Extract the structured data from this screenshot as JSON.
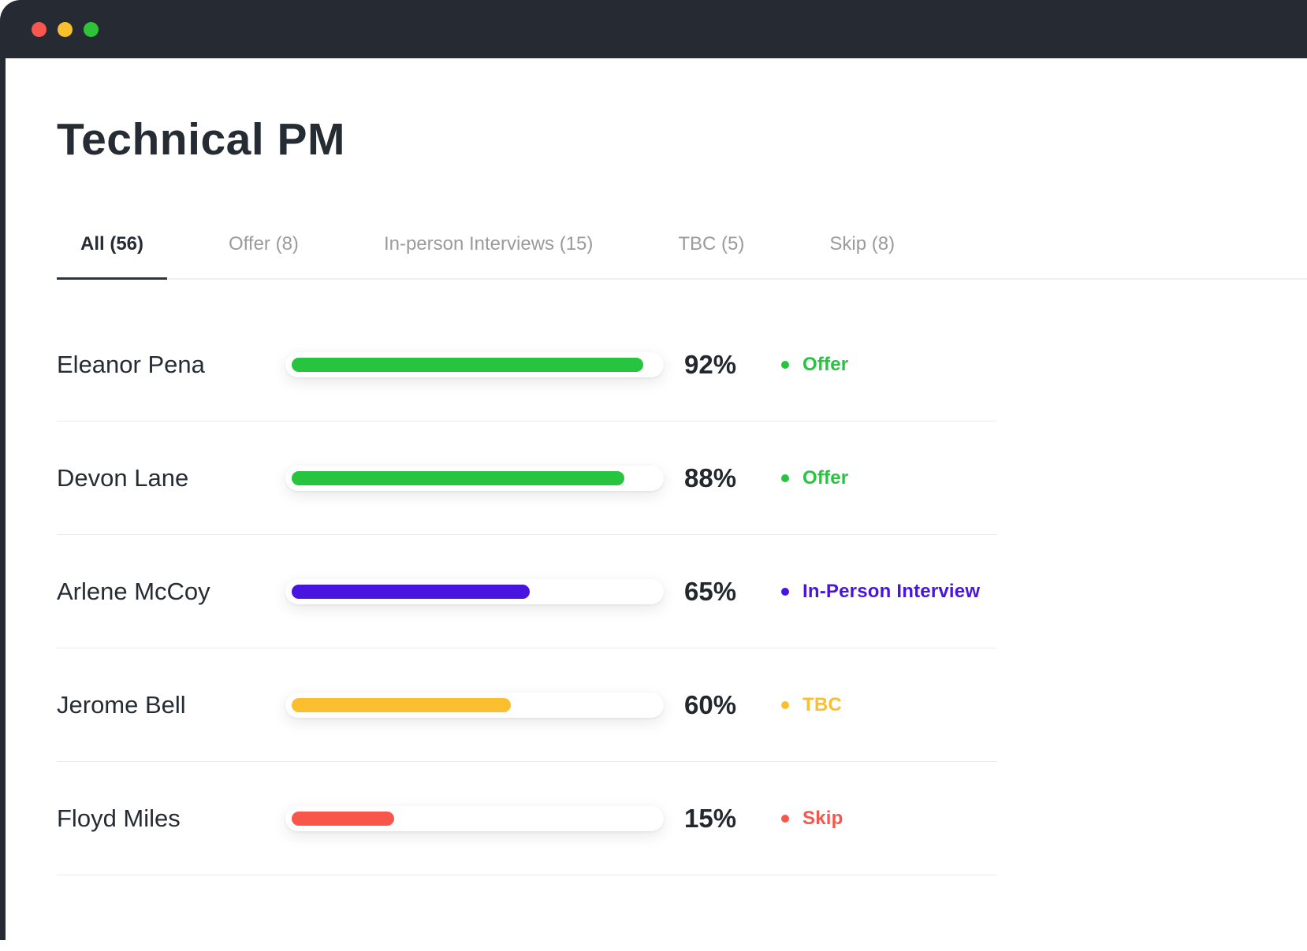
{
  "window": {
    "titlebar_color": "#262B33",
    "traffic_lights": [
      {
        "name": "close",
        "color": "#F8574F"
      },
      {
        "name": "minimize",
        "color": "#FBC12D"
      },
      {
        "name": "zoom",
        "color": "#2FC437"
      }
    ]
  },
  "page": {
    "title": "Technical PM"
  },
  "tabs": [
    {
      "label": "All",
      "count": 56,
      "display": "All (56)",
      "active": true
    },
    {
      "label": "Offer",
      "count": 8,
      "display": "Offer (8)",
      "active": false
    },
    {
      "label": "In-person Interviews",
      "count": 15,
      "display": "In-person Interviews (15)",
      "active": false
    },
    {
      "label": "TBC",
      "count": 5,
      "display": "TBC (5)",
      "active": false
    },
    {
      "label": "Skip",
      "count": 8,
      "display": "Skip (8)",
      "active": false
    }
  ],
  "candidates": [
    {
      "name": "Eleanor Pena",
      "percent": "92%",
      "status": "Offer",
      "color": "#27C43F",
      "display_fill_percent": 93
    },
    {
      "name": "Devon Lane",
      "percent": "88%",
      "status": "Offer",
      "color": "#27C43F",
      "display_fill_percent": 88
    },
    {
      "name": "Arlene McCoy",
      "percent": "65%",
      "status": "In-Person Interview",
      "color": "#4814DF",
      "display_fill_percent": 63
    },
    {
      "name": "Jerome Bell",
      "percent": "60%",
      "status": "TBC",
      "color": "#FBBE2E",
      "display_fill_percent": 58
    },
    {
      "name": "Floyd Miles",
      "percent": "15%",
      "status": "Skip",
      "color": "#F8564B",
      "display_fill_percent": 27
    }
  ]
}
